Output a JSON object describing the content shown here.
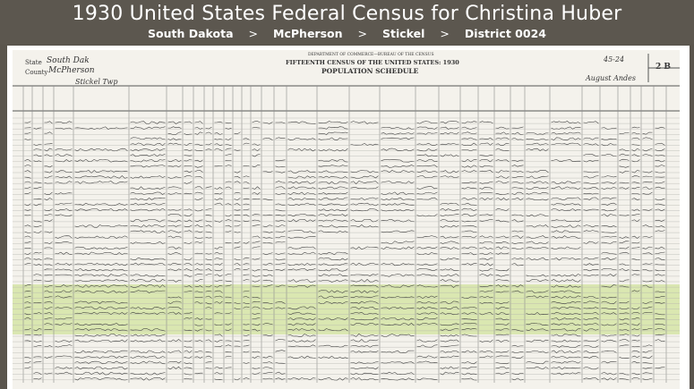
{
  "header": {
    "title": "1930 United States Federal Census for Christina Huber",
    "breadcrumbs": [
      "South Dakota",
      "McPherson",
      "Stickel",
      "District 0024"
    ],
    "separator": ">"
  },
  "document": {
    "dept_line": "DEPARTMENT OF COMMERCE—BUREAU OF THE CENSUS",
    "census_line": "FIFTEENTH CENSUS OF THE UNITED STATES: 1930",
    "schedule_line": "POPULATION SCHEDULE",
    "state_label": "State",
    "state_value": "South Dak",
    "county_label": "County",
    "county_value": "McPherson",
    "township_value": "Stickel Twp",
    "sheet_number": "2 B",
    "district_value": "45-24",
    "enumerated_date": "August Andes",
    "highlighted_rows": "Huber household"
  },
  "colors": {
    "header_bg": "#5c574f",
    "highlight": "#c4de82",
    "paper": "#f4f2ec"
  }
}
